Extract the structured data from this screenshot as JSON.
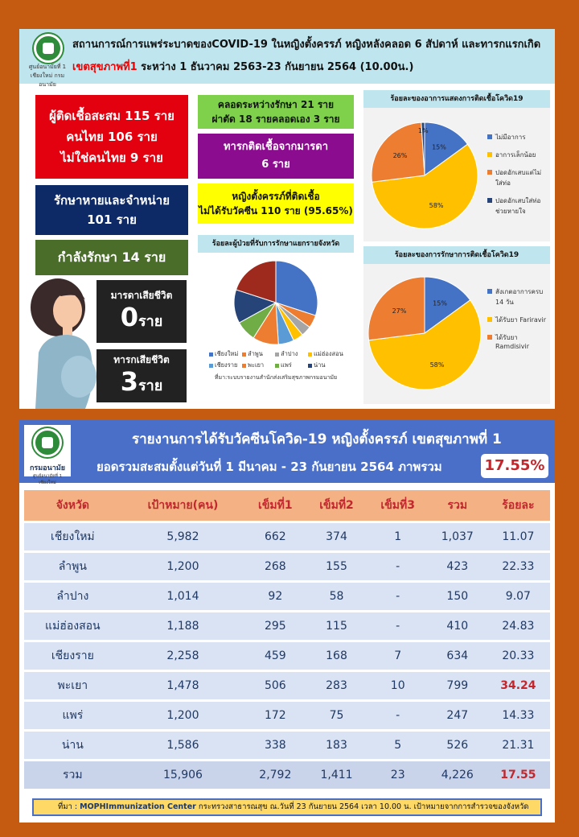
{
  "header": {
    "logo_caption": "ศูนย์อนามัยที่ 1 เชียงใหม่ กรมอนามัย",
    "title_line1": "สถานการณ์การแพร่ระบาดของCOVID-19 ในหญิงตั้งครรภ์ หญิงหลังคลอด 6 สัปดาห์ และทารกแรกเกิด",
    "title_line2_red": "เขตสุขภาพที่1",
    "title_line2_rest": " ระหว่าง 1 ธันวาคม 2563-23 กันยายน 2564 (10.00น.)"
  },
  "stats": {
    "cumulative": [
      "ผู้ติดเชื้อสะสม 115 ราย",
      "คนไทย 106 ราย",
      "ไม่ใช่คนไทย 9 ราย"
    ],
    "recovered": [
      "รักษาหายและจำหน่าย",
      "101 ราย"
    ],
    "treating": "กำลังรักษา 14 ราย",
    "delivered": [
      "คลอดระหว่างรักษา 21 ราย",
      "ผ่าตัด 18 รายคลอดเอง 3 ราย"
    ],
    "infant_infected": [
      "ทารกติดเชื้อจากมารดา",
      "6 ราย"
    ],
    "unvaccinated": [
      "หญิงตั้งครรภ์ที่ติดเชื้อ",
      "ไม่ได้รับวัคซีน 110 ราย (95.65%)"
    ],
    "maternal_death_label": "มารดาเสียชีวิต",
    "maternal_death_num": "0",
    "infant_death_label": "ทารกเสียชีวิต",
    "infant_death_num": "3",
    "unit": "ราย"
  },
  "chart_symptoms": {
    "title": "ร้อยละของอาการแสดงการติดเชื้อโควิด19",
    "type": "pie",
    "slices": [
      {
        "name": "ไม่มีอาการ",
        "value": 15,
        "label": "15%",
        "color": "#4472c4"
      },
      {
        "name": "อาการเล็กน้อย",
        "value": 58,
        "label": "58%",
        "color": "#ffc000"
      },
      {
        "name": "ปอดอักเสบแต่ไม่ใส่ท่อ",
        "value": 26,
        "label": "26%",
        "color": "#ed7d31"
      },
      {
        "name": "ปอดอักเสบใส่ท่อช่วยหายใจ",
        "value": 1,
        "label": "1%",
        "color": "#264478"
      }
    ]
  },
  "chart_treatment": {
    "title": "ร้อยละของการรักษาการติดเชื้อโควิด19",
    "type": "pie",
    "slices": [
      {
        "name": "สังเกตอาการครบ 14 วัน",
        "value": 15,
        "label": "15%",
        "color": "#4472c4"
      },
      {
        "name": "ได้รับยา Fariravir",
        "value": 58,
        "label": "58%",
        "color": "#ffc000"
      },
      {
        "name": "ได้รับยา Ramdisivir",
        "value": 27,
        "label": "27%",
        "color": "#ed7d31"
      }
    ]
  },
  "chart_province": {
    "title": "ร้อยละผู้ป่วยที่รับการรักษาแยกรายจังหวัด",
    "type": "pie",
    "slices": [
      {
        "name": "เชียงใหม่",
        "value": 30,
        "color": "#4472c4"
      },
      {
        "name": "ลำพูน",
        "value": 5,
        "color": "#ed7d31"
      },
      {
        "name": "ลำปาง",
        "value": 4,
        "color": "#a5a5a5"
      },
      {
        "name": "แม่ฮ่องสอน",
        "value": 4,
        "color": "#ffc000"
      },
      {
        "name": "เชียงราย",
        "value": 6,
        "color": "#5b9bd5"
      },
      {
        "name": "พะเยา",
        "value": 10,
        "color": "#ed7d31"
      },
      {
        "name": "แพร่",
        "value": 8,
        "color": "#70ad47"
      },
      {
        "name": "น่าน",
        "value": 13,
        "color": "#264478"
      },
      {
        "name": "",
        "value": 20,
        "color": "#9e2a1e"
      }
    ],
    "source": "ที่มา:ระบบรายงานสำนักส่งเสริมสุขภาพกรมอนามัย"
  },
  "vaccine": {
    "logo_caption": "กรมอนามัย",
    "logo_sub": "ศูนย์อนามัยที่ 1 เชียงใหม่",
    "title1": "รายงานการได้รับวัคซีนโควิด-19 หญิงตั้งครรภ์ เขตสุขภาพที่ 1",
    "title2": "ยอดรวมสะสมตั้งแต่วันที่ 1 มีนาคม - 23 กันยายน 2564  ภาพรวม",
    "overall_pct": "17.55%",
    "columns": [
      "จังหวัด",
      "เป้าหมาย(คน)",
      "เข็มที่1",
      "เข็มที่2",
      "เข็มที่3",
      "รวม",
      "ร้อยละ"
    ],
    "rows": [
      {
        "p": "เชียงใหม่",
        "t": "5,982",
        "d1": "662",
        "d2": "374",
        "d3": "1",
        "sum": "1,037",
        "pct": "11.07",
        "hl": false
      },
      {
        "p": "ลำพูน",
        "t": "1,200",
        "d1": "268",
        "d2": "155",
        "d3": "-",
        "sum": "423",
        "pct": "22.33",
        "hl": false
      },
      {
        "p": "ลำปาง",
        "t": "1,014",
        "d1": "92",
        "d2": "58",
        "d3": "-",
        "sum": "150",
        "pct": "9.07",
        "hl": false
      },
      {
        "p": "แม่ฮ่องสอน",
        "t": "1,188",
        "d1": "295",
        "d2": "115",
        "d3": "-",
        "sum": "410",
        "pct": "24.83",
        "hl": false
      },
      {
        "p": "เชียงราย",
        "t": "2,258",
        "d1": "459",
        "d2": "168",
        "d3": "7",
        "sum": "634",
        "pct": "20.33",
        "hl": false
      },
      {
        "p": "พะเยา",
        "t": "1,478",
        "d1": "506",
        "d2": "283",
        "d3": "10",
        "sum": "799",
        "pct": "34.24",
        "hl": true
      },
      {
        "p": "แพร่",
        "t": "1,200",
        "d1": "172",
        "d2": "75",
        "d3": "-",
        "sum": "247",
        "pct": "14.33",
        "hl": false
      },
      {
        "p": "น่าน",
        "t": "1,586",
        "d1": "338",
        "d2": "183",
        "d3": "5",
        "sum": "526",
        "pct": "21.31",
        "hl": false
      },
      {
        "p": "รวม",
        "t": "15,906",
        "d1": "2,792",
        "d2": "1,411",
        "d3": "23",
        "sum": "4,226",
        "pct": "17.55",
        "hl": true
      }
    ],
    "footer_prefix": "ที่มา : ",
    "footer_bold": "MOPHImmunization Center",
    "footer_rest": " กระทรวงสาธารณสุข ณ.วันที่ 23 กันยายน 2564 เวลา 10.00 น. เป้าหมายจากการสำรวจของจังหวัด"
  }
}
